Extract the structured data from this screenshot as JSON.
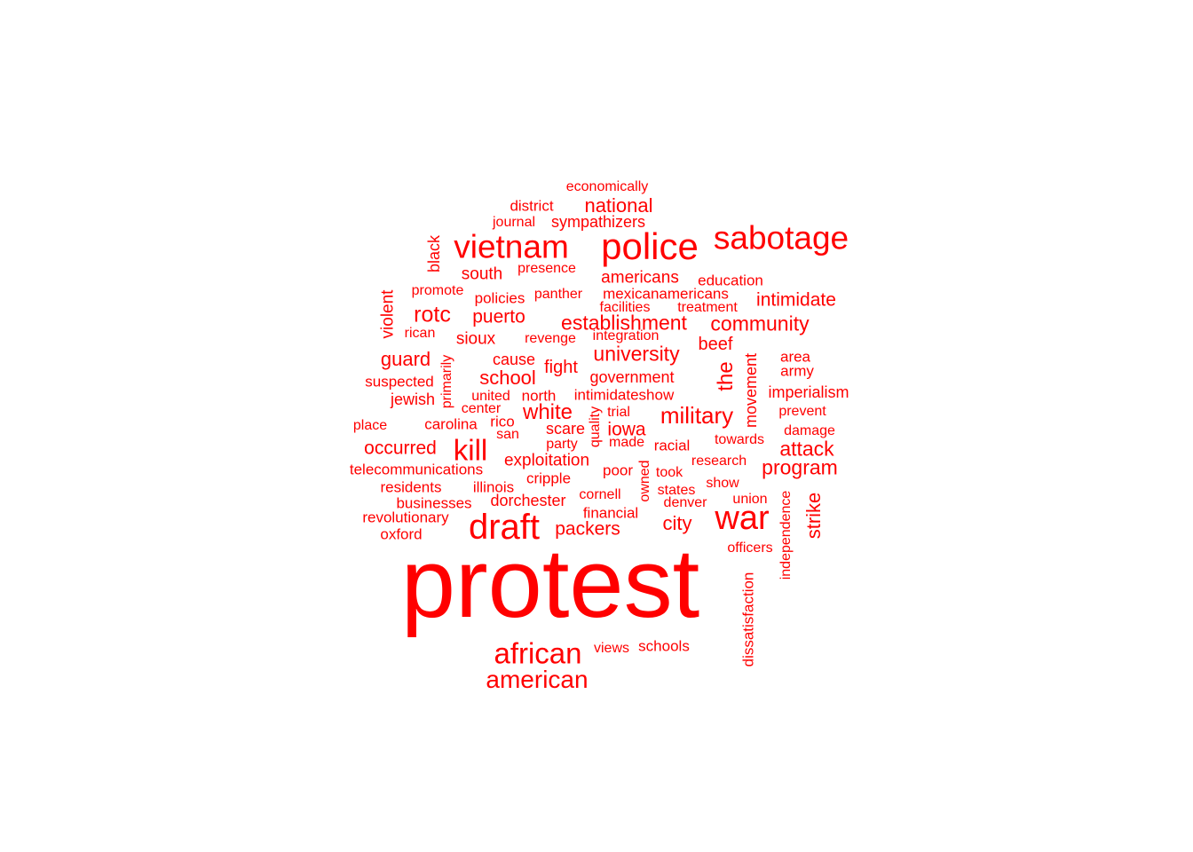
{
  "word_cloud": {
    "color": "#ff0000",
    "words": [
      {
        "text": "protest",
        "weight": 100
      },
      {
        "text": "war",
        "weight": 35
      },
      {
        "text": "draft",
        "weight": 35
      },
      {
        "text": "police",
        "weight": 33
      },
      {
        "text": "vietnam",
        "weight": 30
      },
      {
        "text": "sabotage",
        "weight": 30
      },
      {
        "text": "african",
        "weight": 28
      },
      {
        "text": "kill",
        "weight": 28
      },
      {
        "text": "american",
        "weight": 25
      },
      {
        "text": "military",
        "weight": 24
      },
      {
        "text": "rotc",
        "weight": 22
      },
      {
        "text": "white",
        "weight": 21
      },
      {
        "text": "community",
        "weight": 21
      },
      {
        "text": "establishment",
        "weight": 21
      },
      {
        "text": "university",
        "weight": 21
      },
      {
        "text": "the",
        "weight": 21
      },
      {
        "text": "attack",
        "weight": 21
      },
      {
        "text": "program",
        "weight": 21
      },
      {
        "text": "school",
        "weight": 20
      },
      {
        "text": "guard",
        "weight": 20
      },
      {
        "text": "city",
        "weight": 20
      },
      {
        "text": "strike",
        "weight": 20
      },
      {
        "text": "national",
        "weight": 20
      },
      {
        "text": "puerto",
        "weight": 19
      },
      {
        "text": "intimidate",
        "weight": 19
      },
      {
        "text": "iowa",
        "weight": 19
      },
      {
        "text": "occurred",
        "weight": 19
      },
      {
        "text": "packers",
        "weight": 19
      },
      {
        "text": "fight",
        "weight": 18
      },
      {
        "text": "beef",
        "weight": 18
      },
      {
        "text": "violent",
        "weight": 17
      },
      {
        "text": "sioux",
        "weight": 17
      },
      {
        "text": "south",
        "weight": 17
      },
      {
        "text": "americans",
        "weight": 17
      },
      {
        "text": "exploitation",
        "weight": 17
      },
      {
        "text": "cause",
        "weight": 16
      },
      {
        "text": "government",
        "weight": 16
      },
      {
        "text": "jewish",
        "weight": 16
      },
      {
        "text": "scare",
        "weight": 16
      },
      {
        "text": "sympathizers",
        "weight": 16
      },
      {
        "text": "black",
        "weight": 16
      },
      {
        "text": "movement",
        "weight": 16
      },
      {
        "text": "imperialism",
        "weight": 16
      },
      {
        "text": "dorchester",
        "weight": 16
      },
      {
        "text": "schools",
        "weight": 15
      },
      {
        "text": "district",
        "weight": 15
      },
      {
        "text": "residents",
        "weight": 15
      },
      {
        "text": "carolina",
        "weight": 15
      },
      {
        "text": "north",
        "weight": 15
      },
      {
        "text": "intimidateshow",
        "weight": 15
      },
      {
        "text": "illinois",
        "weight": 15
      },
      {
        "text": "financial",
        "weight": 15
      },
      {
        "text": "telecommunications",
        "weight": 15
      },
      {
        "text": "businesses",
        "weight": 15
      },
      {
        "text": "revolutionary",
        "weight": 15
      },
      {
        "text": "oxford",
        "weight": 15
      },
      {
        "text": "rico",
        "weight": 15
      },
      {
        "text": "suspected",
        "weight": 15
      },
      {
        "text": "education",
        "weight": 15
      },
      {
        "text": "dissatisfaction",
        "weight": 15
      },
      {
        "text": "policies",
        "weight": 15
      },
      {
        "text": "mexicanamericans",
        "weight": 15
      },
      {
        "text": "area",
        "weight": 15
      },
      {
        "text": "army",
        "weight": 15
      },
      {
        "text": "racial",
        "weight": 15
      },
      {
        "text": "cripple",
        "weight": 15
      },
      {
        "text": "presence",
        "weight": 15
      },
      {
        "text": "promote",
        "weight": 15
      },
      {
        "text": "poor",
        "weight": 15
      },
      {
        "text": "research",
        "weight": 15
      },
      {
        "text": "made",
        "weight": 15
      },
      {
        "text": "prevent",
        "weight": 15
      },
      {
        "text": "economically",
        "weight": 14
      },
      {
        "text": "journal",
        "weight": 14
      },
      {
        "text": "panther",
        "weight": 14
      },
      {
        "text": "facilities",
        "weight": 14
      },
      {
        "text": "treatment",
        "weight": 14
      },
      {
        "text": "rican",
        "weight": 14
      },
      {
        "text": "revenge",
        "weight": 14
      },
      {
        "text": "integration",
        "weight": 14
      },
      {
        "text": "primarily",
        "weight": 14
      },
      {
        "text": "united",
        "weight": 14
      },
      {
        "text": "center",
        "weight": 14
      },
      {
        "text": "place",
        "weight": 14
      },
      {
        "text": "san",
        "weight": 14
      },
      {
        "text": "party",
        "weight": 14
      },
      {
        "text": "quality",
        "weight": 14
      },
      {
        "text": "trial",
        "weight": 14
      },
      {
        "text": "towards",
        "weight": 14
      },
      {
        "text": "damage",
        "weight": 14
      },
      {
        "text": "took",
        "weight": 14
      },
      {
        "text": "owned",
        "weight": 14
      },
      {
        "text": "states",
        "weight": 14
      },
      {
        "text": "show",
        "weight": 14
      },
      {
        "text": "cornell",
        "weight": 14
      },
      {
        "text": "denver",
        "weight": 14
      },
      {
        "text": "union",
        "weight": 14
      },
      {
        "text": "officers",
        "weight": 14
      },
      {
        "text": "independence",
        "weight": 14
      },
      {
        "text": "views",
        "weight": 14
      }
    ]
  }
}
